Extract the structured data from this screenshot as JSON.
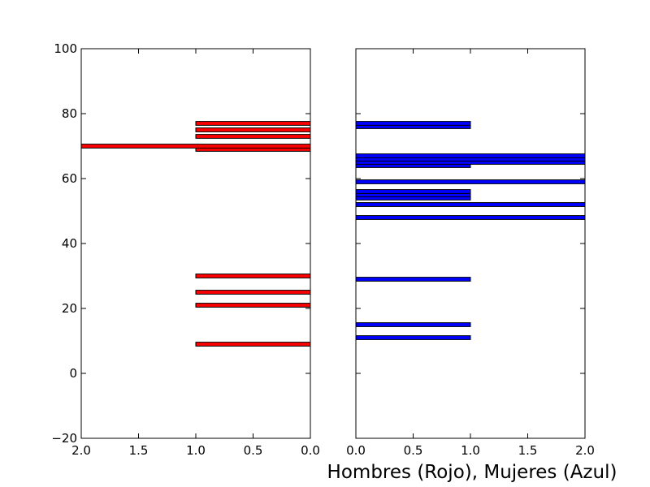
{
  "chart_data": {
    "type": "bar",
    "orientation": "horizontal",
    "xlabel": "Hombres (Rojo), Mujeres (Azul)",
    "ylim": [
      -20,
      100
    ],
    "yticks": [
      "100",
      "80",
      "60",
      "40",
      "20",
      "0",
      "−20"
    ],
    "grid": false,
    "panels": [
      {
        "name": "Hombres",
        "color": "#ff0000",
        "xlim": [
          2.0,
          0.0
        ],
        "inverted_x": true,
        "xticks": [
          "2.0",
          "1.5",
          "1.0",
          "0.5",
          "0.0"
        ],
        "bars": [
          {
            "y": 9,
            "value": 1
          },
          {
            "y": 21,
            "value": 1
          },
          {
            "y": 25,
            "value": 1
          },
          {
            "y": 30,
            "value": 1
          },
          {
            "y": 69,
            "value": 1
          },
          {
            "y": 70,
            "value": 2
          },
          {
            "y": 73,
            "value": 1
          },
          {
            "y": 75,
            "value": 1
          },
          {
            "y": 77,
            "value": 1
          }
        ]
      },
      {
        "name": "Mujeres",
        "color": "#0000ff",
        "xlim": [
          0.0,
          2.0
        ],
        "inverted_x": false,
        "xticks": [
          "0.0",
          "0.5",
          "1.0",
          "1.5",
          "2.0"
        ],
        "bars": [
          {
            "y": 11,
            "value": 1
          },
          {
            "y": 15,
            "value": 1
          },
          {
            "y": 29,
            "value": 1
          },
          {
            "y": 48,
            "value": 2
          },
          {
            "y": 52,
            "value": 2
          },
          {
            "y": 54,
            "value": 1
          },
          {
            "y": 55,
            "value": 1
          },
          {
            "y": 56,
            "value": 1
          },
          {
            "y": 59,
            "value": 2
          },
          {
            "y": 64,
            "value": 1
          },
          {
            "y": 65,
            "value": 2
          },
          {
            "y": 66,
            "value": 2
          },
          {
            "y": 67,
            "value": 2
          },
          {
            "y": 76,
            "value": 1
          },
          {
            "y": 77,
            "value": 1
          }
        ]
      }
    ]
  }
}
